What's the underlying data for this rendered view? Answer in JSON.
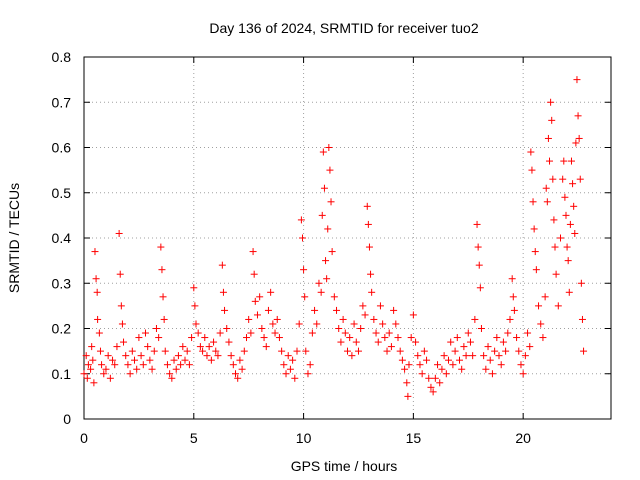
{
  "chart_data": {
    "type": "scatter",
    "title": "Day 136 of 2024, SRMTID for receiver tuo2",
    "xlabel": "GPS time / hours",
    "ylabel": "SRMTID / TECUs",
    "xlim": [
      0,
      24
    ],
    "ylim": [
      0,
      0.8
    ],
    "xticks": [
      0,
      5,
      10,
      15,
      20
    ],
    "xtick_labels": [
      "0",
      "5",
      "10",
      "15",
      "20"
    ],
    "yticks": [
      0,
      0.1,
      0.2,
      0.3,
      0.4,
      0.5,
      0.6,
      0.7,
      0.8
    ],
    "ytick_labels": [
      "0",
      "0.1",
      "0.2",
      "0.3",
      "0.4",
      "0.5",
      "0.6",
      "0.7",
      "0.8"
    ],
    "grid": true,
    "marker": "plus",
    "series": [
      {
        "name": "SRMTID",
        "color": "#ff0000",
        "points": [
          [
            0.0,
            0.1
          ],
          [
            0.1,
            0.14
          ],
          [
            0.15,
            0.09
          ],
          [
            0.2,
            0.12
          ],
          [
            0.3,
            0.11
          ],
          [
            0.35,
            0.16
          ],
          [
            0.4,
            0.13
          ],
          [
            0.45,
            0.08
          ],
          [
            0.5,
            0.37
          ],
          [
            0.55,
            0.31
          ],
          [
            0.6,
            0.28
          ],
          [
            0.62,
            0.22
          ],
          [
            0.7,
            0.19
          ],
          [
            0.75,
            0.15
          ],
          [
            0.8,
            0.12
          ],
          [
            0.9,
            0.1
          ],
          [
            1.0,
            0.11
          ],
          [
            1.1,
            0.14
          ],
          [
            1.2,
            0.09
          ],
          [
            1.3,
            0.13
          ],
          [
            1.4,
            0.12
          ],
          [
            1.5,
            0.16
          ],
          [
            1.6,
            0.41
          ],
          [
            1.65,
            0.32
          ],
          [
            1.7,
            0.25
          ],
          [
            1.75,
            0.21
          ],
          [
            1.8,
            0.17
          ],
          [
            1.9,
            0.14
          ],
          [
            2.0,
            0.12
          ],
          [
            2.1,
            0.1
          ],
          [
            2.2,
            0.15
          ],
          [
            2.3,
            0.13
          ],
          [
            2.4,
            0.11
          ],
          [
            2.5,
            0.18
          ],
          [
            2.6,
            0.14
          ],
          [
            2.7,
            0.12
          ],
          [
            2.8,
            0.19
          ],
          [
            2.9,
            0.16
          ],
          [
            3.0,
            0.13
          ],
          [
            3.1,
            0.11
          ],
          [
            3.2,
            0.15
          ],
          [
            3.3,
            0.2
          ],
          [
            3.4,
            0.18
          ],
          [
            3.5,
            0.38
          ],
          [
            3.55,
            0.33
          ],
          [
            3.6,
            0.27
          ],
          [
            3.65,
            0.22
          ],
          [
            3.7,
            0.15
          ],
          [
            3.8,
            0.12
          ],
          [
            3.9,
            0.1
          ],
          [
            4.0,
            0.09
          ],
          [
            4.1,
            0.13
          ],
          [
            4.2,
            0.11
          ],
          [
            4.3,
            0.14
          ],
          [
            4.4,
            0.12
          ],
          [
            4.5,
            0.16
          ],
          [
            4.6,
            0.13
          ],
          [
            4.7,
            0.15
          ],
          [
            4.8,
            0.12
          ],
          [
            4.9,
            0.18
          ],
          [
            5.0,
            0.29
          ],
          [
            5.05,
            0.25
          ],
          [
            5.1,
            0.21
          ],
          [
            5.2,
            0.19
          ],
          [
            5.3,
            0.16
          ],
          [
            5.4,
            0.15
          ],
          [
            5.5,
            0.18
          ],
          [
            5.6,
            0.14
          ],
          [
            5.7,
            0.16
          ],
          [
            5.8,
            0.13
          ],
          [
            5.9,
            0.17
          ],
          [
            6.0,
            0.15
          ],
          [
            6.1,
            0.14
          ],
          [
            6.2,
            0.19
          ],
          [
            6.3,
            0.34
          ],
          [
            6.35,
            0.28
          ],
          [
            6.4,
            0.24
          ],
          [
            6.5,
            0.2
          ],
          [
            6.6,
            0.17
          ],
          [
            6.7,
            0.14
          ],
          [
            6.8,
            0.12
          ],
          [
            6.9,
            0.1
          ],
          [
            7.0,
            0.09
          ],
          [
            7.1,
            0.13
          ],
          [
            7.2,
            0.11
          ],
          [
            7.3,
            0.15
          ],
          [
            7.4,
            0.18
          ],
          [
            7.5,
            0.22
          ],
          [
            7.6,
            0.19
          ],
          [
            7.7,
            0.37
          ],
          [
            7.75,
            0.32
          ],
          [
            7.8,
            0.26
          ],
          [
            7.9,
            0.23
          ],
          [
            8.0,
            0.27
          ],
          [
            8.1,
            0.2
          ],
          [
            8.2,
            0.18
          ],
          [
            8.3,
            0.16
          ],
          [
            8.4,
            0.24
          ],
          [
            8.5,
            0.28
          ],
          [
            8.6,
            0.21
          ],
          [
            8.7,
            0.19
          ],
          [
            8.8,
            0.22
          ],
          [
            8.9,
            0.18
          ],
          [
            9.0,
            0.15
          ],
          [
            9.1,
            0.12
          ],
          [
            9.2,
            0.1
          ],
          [
            9.3,
            0.14
          ],
          [
            9.4,
            0.11
          ],
          [
            9.5,
            0.13
          ],
          [
            9.6,
            0.09
          ],
          [
            9.7,
            0.15
          ],
          [
            9.8,
            0.21
          ],
          [
            9.9,
            0.44
          ],
          [
            9.95,
            0.4
          ],
          [
            10.0,
            0.33
          ],
          [
            10.05,
            0.27
          ],
          [
            10.1,
            0.15
          ],
          [
            10.2,
            0.1
          ],
          [
            10.3,
            0.12
          ],
          [
            10.4,
            0.19
          ],
          [
            10.5,
            0.24
          ],
          [
            10.6,
            0.21
          ],
          [
            10.7,
            0.3
          ],
          [
            10.8,
            0.28
          ],
          [
            10.85,
            0.45
          ],
          [
            10.9,
            0.59
          ],
          [
            10.95,
            0.51
          ],
          [
            11.0,
            0.35
          ],
          [
            11.05,
            0.31
          ],
          [
            11.1,
            0.42
          ],
          [
            11.15,
            0.6
          ],
          [
            11.2,
            0.55
          ],
          [
            11.25,
            0.48
          ],
          [
            11.3,
            0.37
          ],
          [
            11.4,
            0.27
          ],
          [
            11.5,
            0.24
          ],
          [
            11.6,
            0.2
          ],
          [
            11.7,
            0.17
          ],
          [
            11.8,
            0.22
          ],
          [
            11.9,
            0.19
          ],
          [
            12.0,
            0.15
          ],
          [
            12.1,
            0.18
          ],
          [
            12.2,
            0.14
          ],
          [
            12.3,
            0.21
          ],
          [
            12.4,
            0.17
          ],
          [
            12.5,
            0.15
          ],
          [
            12.6,
            0.2
          ],
          [
            12.7,
            0.25
          ],
          [
            12.8,
            0.23
          ],
          [
            12.9,
            0.47
          ],
          [
            12.95,
            0.43
          ],
          [
            13.0,
            0.38
          ],
          [
            13.05,
            0.32
          ],
          [
            13.1,
            0.28
          ],
          [
            13.2,
            0.22
          ],
          [
            13.3,
            0.19
          ],
          [
            13.4,
            0.17
          ],
          [
            13.5,
            0.25
          ],
          [
            13.6,
            0.21
          ],
          [
            13.7,
            0.18
          ],
          [
            13.8,
            0.15
          ],
          [
            13.9,
            0.19
          ],
          [
            14.0,
            0.16
          ],
          [
            14.1,
            0.24
          ],
          [
            14.2,
            0.21
          ],
          [
            14.3,
            0.18
          ],
          [
            14.4,
            0.15
          ],
          [
            14.5,
            0.13
          ],
          [
            14.6,
            0.11
          ],
          [
            14.7,
            0.08
          ],
          [
            14.75,
            0.05
          ],
          [
            14.8,
            0.12
          ],
          [
            14.9,
            0.18
          ],
          [
            15.0,
            0.23
          ],
          [
            15.1,
            0.17
          ],
          [
            15.2,
            0.14
          ],
          [
            15.3,
            0.12
          ],
          [
            15.4,
            0.1
          ],
          [
            15.5,
            0.15
          ],
          [
            15.6,
            0.13
          ],
          [
            15.7,
            0.09
          ],
          [
            15.8,
            0.07
          ],
          [
            15.9,
            0.06
          ],
          [
            16.0,
            0.09
          ],
          [
            16.1,
            0.12
          ],
          [
            16.2,
            0.08
          ],
          [
            16.3,
            0.11
          ],
          [
            16.4,
            0.14
          ],
          [
            16.5,
            0.1
          ],
          [
            16.6,
            0.13
          ],
          [
            16.7,
            0.17
          ],
          [
            16.8,
            0.12
          ],
          [
            16.9,
            0.15
          ],
          [
            17.0,
            0.18
          ],
          [
            17.1,
            0.13
          ],
          [
            17.2,
            0.11
          ],
          [
            17.3,
            0.16
          ],
          [
            17.4,
            0.14
          ],
          [
            17.5,
            0.19
          ],
          [
            17.6,
            0.17
          ],
          [
            17.7,
            0.14
          ],
          [
            17.8,
            0.22
          ],
          [
            17.9,
            0.43
          ],
          [
            17.95,
            0.38
          ],
          [
            18.0,
            0.34
          ],
          [
            18.05,
            0.29
          ],
          [
            18.1,
            0.2
          ],
          [
            18.2,
            0.14
          ],
          [
            18.3,
            0.11
          ],
          [
            18.4,
            0.16
          ],
          [
            18.5,
            0.13
          ],
          [
            18.6,
            0.1
          ],
          [
            18.7,
            0.15
          ],
          [
            18.8,
            0.18
          ],
          [
            18.9,
            0.14
          ],
          [
            19.0,
            0.12
          ],
          [
            19.1,
            0.17
          ],
          [
            19.2,
            0.15
          ],
          [
            19.3,
            0.19
          ],
          [
            19.4,
            0.22
          ],
          [
            19.5,
            0.31
          ],
          [
            19.55,
            0.27
          ],
          [
            19.6,
            0.24
          ],
          [
            19.7,
            0.18
          ],
          [
            19.8,
            0.15
          ],
          [
            19.9,
            0.12
          ],
          [
            20.0,
            0.1
          ],
          [
            20.1,
            0.14
          ],
          [
            20.2,
            0.19
          ],
          [
            20.3,
            0.16
          ],
          [
            20.35,
            0.59
          ],
          [
            20.4,
            0.55
          ],
          [
            20.45,
            0.48
          ],
          [
            20.5,
            0.42
          ],
          [
            20.55,
            0.37
          ],
          [
            20.6,
            0.33
          ],
          [
            20.7,
            0.25
          ],
          [
            20.8,
            0.21
          ],
          [
            20.9,
            0.18
          ],
          [
            21.0,
            0.27
          ],
          [
            21.05,
            0.51
          ],
          [
            21.1,
            0.48
          ],
          [
            21.15,
            0.62
          ],
          [
            21.2,
            0.57
          ],
          [
            21.25,
            0.7
          ],
          [
            21.3,
            0.66
          ],
          [
            21.35,
            0.53
          ],
          [
            21.4,
            0.44
          ],
          [
            21.45,
            0.38
          ],
          [
            21.5,
            0.32
          ],
          [
            21.6,
            0.25
          ],
          [
            21.7,
            0.4
          ],
          [
            21.8,
            0.53
          ],
          [
            21.85,
            0.57
          ],
          [
            21.9,
            0.49
          ],
          [
            21.95,
            0.45
          ],
          [
            22.0,
            0.38
          ],
          [
            22.05,
            0.35
          ],
          [
            22.1,
            0.28
          ],
          [
            22.15,
            0.43
          ],
          [
            22.2,
            0.57
          ],
          [
            22.25,
            0.52
          ],
          [
            22.3,
            0.47
          ],
          [
            22.35,
            0.41
          ],
          [
            22.4,
            0.61
          ],
          [
            22.45,
            0.75
          ],
          [
            22.5,
            0.67
          ],
          [
            22.55,
            0.62
          ],
          [
            22.6,
            0.53
          ],
          [
            22.65,
            0.3
          ],
          [
            22.7,
            0.22
          ],
          [
            22.75,
            0.15
          ]
        ]
      }
    ]
  }
}
